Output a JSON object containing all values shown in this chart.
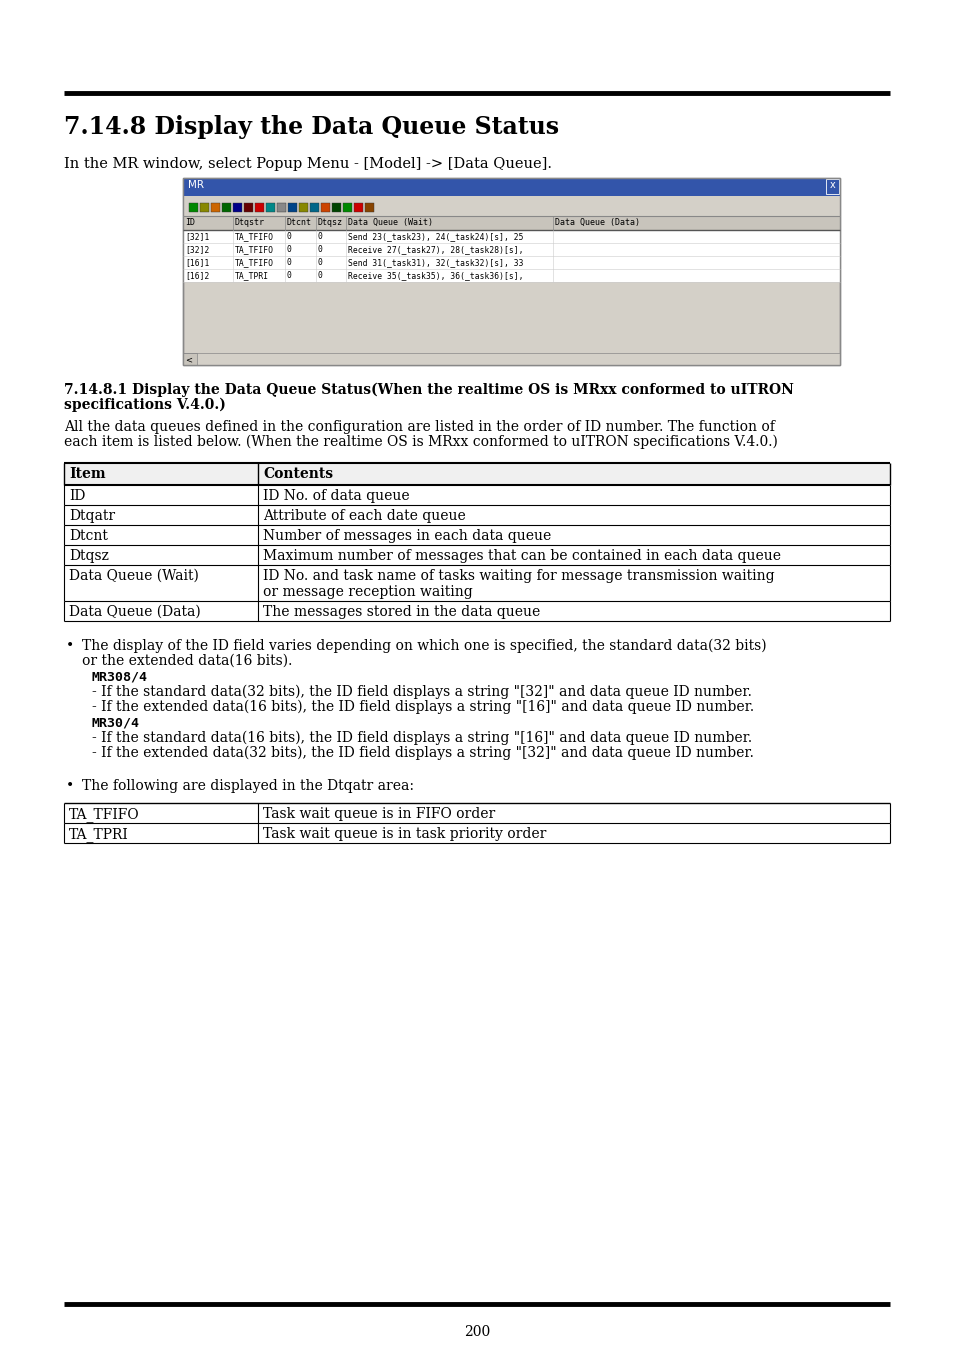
{
  "title": "7.14.8 Display the Data Queue Status",
  "intro_text": "In the MR window, select Popup Menu - [Model] -> [Data Queue].",
  "section_title_line1": "7.14.8.1 Display the Data Queue Status(When the realtime OS is MRxx conformed to uITRON",
  "section_title_line2": "specifications V.4.0.)",
  "section_body_line1": "All the data queues defined in the configuration are listed in the order of ID number. The function of",
  "section_body_line2": "each item is listed below. (When the realtime OS is MRxx conformed to uITRON specifications V.4.0.)",
  "table1_headers": [
    "Item",
    "Contents"
  ],
  "table1_rows": [
    [
      "ID",
      "ID No. of data queue"
    ],
    [
      "Dtqatr",
      "Attribute of each date queue"
    ],
    [
      "Dtcnt",
      "Number of messages in each data queue"
    ],
    [
      "Dtqsz",
      "Maximum number of messages that can be contained in each data queue"
    ],
    [
      "Data Queue (Wait)",
      "ID No. and task name of tasks waiting for message transmission waiting",
      "or message reception waiting"
    ],
    [
      "Data Queue (Data)",
      "The messages stored in the data queue"
    ]
  ],
  "bullet1_line1": "The display of the ID field varies depending on which one is specified, the standard data(32 bits)",
  "bullet1_line2": "or the extended data(16 bits).",
  "mr308_label": "MR308/4",
  "mr308_items": [
    "- If the standard data(32 bits), the ID field displays a string \"[32]\" and data queue ID number.",
    "- If the extended data(16 bits), the ID field displays a string \"[16]\" and data queue ID number."
  ],
  "mr30_label": "MR30/4",
  "mr30_items": [
    "- If the standard data(16 bits), the ID field displays a string \"[16]\" and data queue ID number.",
    "- If the extended data(32 bits), the ID field displays a string \"[32]\" and data queue ID number."
  ],
  "bullet2_text": "The following are displayed in the Dtqatr area:",
  "table2_rows": [
    [
      "TA_TFIFO",
      "Task wait queue is in FIFO order"
    ],
    [
      "TA_TPRI",
      "Task wait queue is in task priority order"
    ]
  ],
  "page_number": "200",
  "win_title": "MR",
  "win_toolbar_text": "■ ♦ ○ ▶ ─ △▲ ⊞ ○ ⊞ ■ ▫ ← → ⊞ ▫ ■",
  "win_header": [
    "ID",
    "Dtqstr",
    "Dtcnt",
    "Dtqsz",
    "Data Queue (Wait)",
    "Data Queue (Data)"
  ],
  "win_rows": [
    [
      "[32]1",
      "TA_TFIFO",
      "0",
      "0",
      "Send 23(_task23), 24(_task24)[s], 25"
    ],
    [
      "[32]2",
      "TA_TFIFO",
      "0",
      "0",
      "Receive 27(_task27), 28(_task28)[s],"
    ],
    [
      "[16]1",
      "TA_TFIFO",
      "0",
      "0",
      "Send 31(_task31), 32(_task32)[s], 33"
    ],
    [
      "[16]2",
      "TA_TPRI",
      "0",
      "0",
      "Receive 35(_task35), 36(_task36)[s],"
    ]
  ],
  "bg_color": "#ffffff",
  "text_color": "#000000",
  "bar_color": "#000000",
  "win_titlebar_color": "#3355aa",
  "win_bg_color": "#d4d0c8",
  "win_white": "#ffffff",
  "win_border": "#888888"
}
